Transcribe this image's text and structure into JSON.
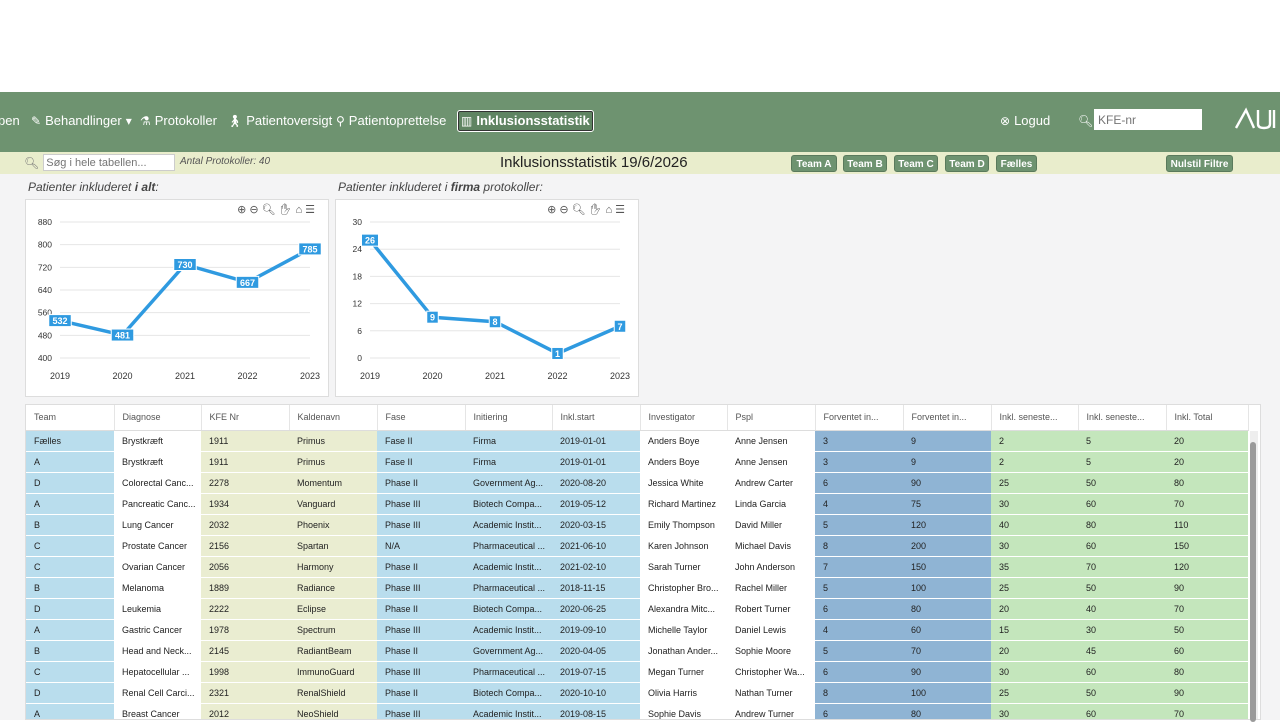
{
  "nav": {
    "items": [
      {
        "label": "pen",
        "icon": "partial"
      },
      {
        "label": "Behandlinger",
        "icon": "pen-icon"
      },
      {
        "label": "Protokoller",
        "icon": "flask-icon"
      },
      {
        "label": "Patientoversigt",
        "icon": "person-walk-icon"
      },
      {
        "label": "Patientoprettelse",
        "icon": "person-add-icon"
      },
      {
        "label": "Inklusionsstatistik",
        "icon": "chart-icon"
      }
    ],
    "logout": "Logud",
    "kfe_placeholder": "KFE-nr",
    "logo": "AUH"
  },
  "toolbar": {
    "search_placeholder": "Søg i hele tabellen...",
    "count": "Antal Protokoller: 40",
    "title": "Inklusionsstatistik 19/6/2026",
    "teams": [
      "Team A",
      "Team B",
      "Team C",
      "Team D",
      "Fælles"
    ],
    "reset": "Nulstil Filtre"
  },
  "colors": {
    "nav": "#6e9370",
    "toolbar": "#e9edcc",
    "line": "#2f9ae0"
  },
  "chart1": {
    "caption_pre": "Patienter inkluderet ",
    "caption_em": "i alt",
    "caption_post": ":"
  },
  "chart2": {
    "caption_pre": "Patienter inkluderet i ",
    "caption_em": "firma",
    "caption_post": " protokoller:"
  },
  "chart_data": [
    {
      "type": "line",
      "x": [
        "2019",
        "2020",
        "2021",
        "2022",
        "2023"
      ],
      "values": [
        532,
        481,
        730,
        667,
        785
      ],
      "ylim": [
        400,
        880
      ],
      "yticks": [
        400,
        480,
        560,
        640,
        720,
        800,
        880
      ]
    },
    {
      "type": "line",
      "x": [
        "2019",
        "2020",
        "2021",
        "2022",
        "2023"
      ],
      "values": [
        26,
        9,
        8,
        1,
        7
      ],
      "ylim": [
        0,
        30
      ],
      "yticks": [
        0,
        6,
        12,
        18,
        24,
        30
      ]
    }
  ],
  "table": {
    "headers": [
      "Team",
      "Diagnose",
      "KFE Nr",
      "Kaldenavn",
      "Fase",
      "Initiering",
      "Inkl.start",
      "Investigator",
      "Pspl",
      "Forventet in...",
      "Forventet in...",
      "Inkl. seneste...",
      "Inkl. seneste...",
      "Inkl. Total"
    ],
    "rows": [
      [
        "Fælles",
        "Brystkræft",
        "1911",
        "Primus",
        "Fase II",
        "Firma",
        "2019-01-01",
        "Anders Boye",
        "Anne Jensen",
        "3",
        "9",
        "2",
        "5",
        "20"
      ],
      [
        "A",
        "Brystkræft",
        "1911",
        "Primus",
        "Fase II",
        "Firma",
        "2019-01-01",
        "Anders Boye",
        "Anne Jensen",
        "3",
        "9",
        "2",
        "5",
        "20"
      ],
      [
        "D",
        "Colorectal Canc...",
        "2278",
        "Momentum",
        "Phase II",
        "Government Ag...",
        "2020-08-20",
        "Jessica White",
        "Andrew Carter",
        "6",
        "90",
        "25",
        "50",
        "80"
      ],
      [
        "A",
        "Pancreatic Canc...",
        "1934",
        "Vanguard",
        "Phase III",
        "Biotech Compa...",
        "2019-05-12",
        "Richard Martinez",
        "Linda Garcia",
        "4",
        "75",
        "30",
        "60",
        "70"
      ],
      [
        "B",
        "Lung Cancer",
        "2032",
        "Phoenix",
        "Phase III",
        "Academic Instit...",
        "2020-03-15",
        "Emily Thompson",
        "David Miller",
        "5",
        "120",
        "40",
        "80",
        "110"
      ],
      [
        "C",
        "Prostate Cancer",
        "2156",
        "Spartan",
        "N/A",
        "Pharmaceutical ...",
        "2021-06-10",
        "Karen Johnson",
        "Michael Davis",
        "8",
        "200",
        "30",
        "60",
        "150"
      ],
      [
        "C",
        "Ovarian Cancer",
        "2056",
        "Harmony",
        "Phase II",
        "Academic Instit...",
        "2021-02-10",
        "Sarah Turner",
        "John Anderson",
        "7",
        "150",
        "35",
        "70",
        "120"
      ],
      [
        "B",
        "Melanoma",
        "1889",
        "Radiance",
        "Phase III",
        "Pharmaceutical ...",
        "2018-11-15",
        "Christopher Bro...",
        "Rachel Miller",
        "5",
        "100",
        "25",
        "50",
        "90"
      ],
      [
        "D",
        "Leukemia",
        "2222",
        "Eclipse",
        "Phase II",
        "Biotech Compa...",
        "2020-06-25",
        "Alexandra Mitc...",
        "Robert Turner",
        "6",
        "80",
        "20",
        "40",
        "70"
      ],
      [
        "A",
        "Gastric Cancer",
        "1978",
        "Spectrum",
        "Phase III",
        "Academic Instit...",
        "2019-09-10",
        "Michelle Taylor",
        "Daniel Lewis",
        "4",
        "60",
        "15",
        "30",
        "50"
      ],
      [
        "B",
        "Head and Neck...",
        "2145",
        "RadiantBeam",
        "Phase II",
        "Government Ag...",
        "2020-04-05",
        "Jonathan Ander...",
        "Sophie Moore",
        "5",
        "70",
        "20",
        "45",
        "60"
      ],
      [
        "C",
        "Hepatocellular ...",
        "1998",
        "ImmunoGuard",
        "Phase III",
        "Pharmaceutical ...",
        "2019-07-15",
        "Megan Turner",
        "Christopher Wa...",
        "6",
        "90",
        "30",
        "60",
        "80"
      ],
      [
        "D",
        "Renal Cell Carci...",
        "2321",
        "RenalShield",
        "Phase II",
        "Biotech Compa...",
        "2020-10-10",
        "Olivia Harris",
        "Nathan Turner",
        "8",
        "100",
        "25",
        "50",
        "90"
      ],
      [
        "A",
        "Breast Cancer",
        "2012",
        "NeoShield",
        "Phase III",
        "Academic Instit...",
        "2019-08-15",
        "Sophie Davis",
        "Andrew Turner",
        "6",
        "80",
        "30",
        "60",
        "70"
      ]
    ]
  }
}
